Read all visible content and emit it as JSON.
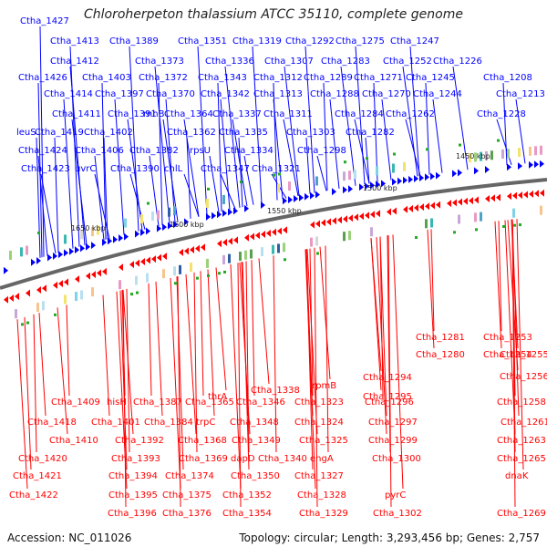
{
  "title": "Chloroherpeton thalassium ATCC 35110, complete genome",
  "footer": {
    "accession": "Accession: NC_011026",
    "summary": "Topology: circular; Length: 3,293,456 bp; Genes: 2,757"
  },
  "scale_labels": [
    "1650 kbp",
    "1600 kbp",
    "1550 kbp",
    "1500 kbp",
    "1450 kbp"
  ],
  "colors": {
    "forward": "#0000ff",
    "reverse": "#ff0000",
    "backbone": "#666666"
  },
  "forward_labels": [
    "Ctha_1427",
    "Ctha_1413",
    "Ctha_1389",
    "Ctha_1351",
    "Ctha_1319",
    "Ctha_1292",
    "Ctha_1275",
    "Ctha_1247",
    "Ctha_1412",
    "Ctha_1373",
    "Ctha_1336",
    "Ctha_1307",
    "Ctha_1283",
    "Ctha_1252",
    "Ctha_1226",
    "Ctha_1426",
    "Ctha_1403",
    "Ctha_1372",
    "Ctha_1343",
    "Ctha_1312",
    "Ctha_1289",
    "Ctha_1271",
    "Ctha_1245",
    "Ctha_1208",
    "Ctha_1414",
    "Ctha_1397",
    "Ctha_1370",
    "Ctha_1342",
    "Ctha_1313",
    "Ctha_1288",
    "Ctha_1270",
    "Ctha_1244",
    "Ctha_1213",
    "Ctha_1411",
    "Ctha_1391",
    "rnhB",
    "Ctha_1364",
    "Ctha_1337",
    "Ctha_1311",
    "Ctha_1284",
    "Ctha_1262",
    "Ctha_1228",
    "leuS",
    "Ctha_1419",
    "Ctha_1402",
    "Ctha_1362",
    "Ctha_1335",
    "Ctha_1303",
    "Ctha_1282",
    "Ctha_1424",
    "Ctha_1406",
    "Ctha_1382",
    "rpsU",
    "Ctha_1334",
    "Ctha_1298",
    "Ctha_1423",
    "uvrC",
    "Ctha_1390",
    "chlL",
    "Ctha_1347",
    "Ctha_1321"
  ],
  "reverse_labels": [
    "Ctha_1281",
    "Ctha_1253",
    "Ctha_1280",
    "Ctha_1254",
    "Ctha_1255",
    "rpmB",
    "Ctha_1294",
    "Ctha_1338",
    "thrA",
    "Ctha_1295",
    "Ctha_1256",
    "Ctha_1409",
    "hisH",
    "Ctha_1387",
    "Ctha_1365",
    "Ctha_1346",
    "Ctha_1323",
    "Ctha_1296",
    "Ctha_1258",
    "Ctha_1418",
    "Ctha_1401",
    "Ctha_1384",
    "trpC",
    "Ctha_1348",
    "Ctha_1324",
    "Ctha_1297",
    "Ctha_1261",
    "Ctha_1410",
    "Ctha_1392",
    "Ctha_1368",
    "Ctha_1349",
    "Ctha_1325",
    "Ctha_1299",
    "Ctha_1263",
    "Ctha_1420",
    "Ctha_1393",
    "Ctha_1369",
    "dapD",
    "Ctha_1340",
    "engA",
    "Ctha_1300",
    "Ctha_1265",
    "Ctha_1421",
    "Ctha_1394",
    "Ctha_1374",
    "Ctha_1350",
    "Ctha_1327",
    "dnaK",
    "Ctha_1422",
    "Ctha_1395",
    "Ctha_1375",
    "Ctha_1352",
    "Ctha_1328",
    "pyrC",
    "Ctha_1396",
    "Ctha_1376",
    "Ctha_1354",
    "Ctha_1329",
    "Ctha_1302",
    "Ctha_1269"
  ]
}
